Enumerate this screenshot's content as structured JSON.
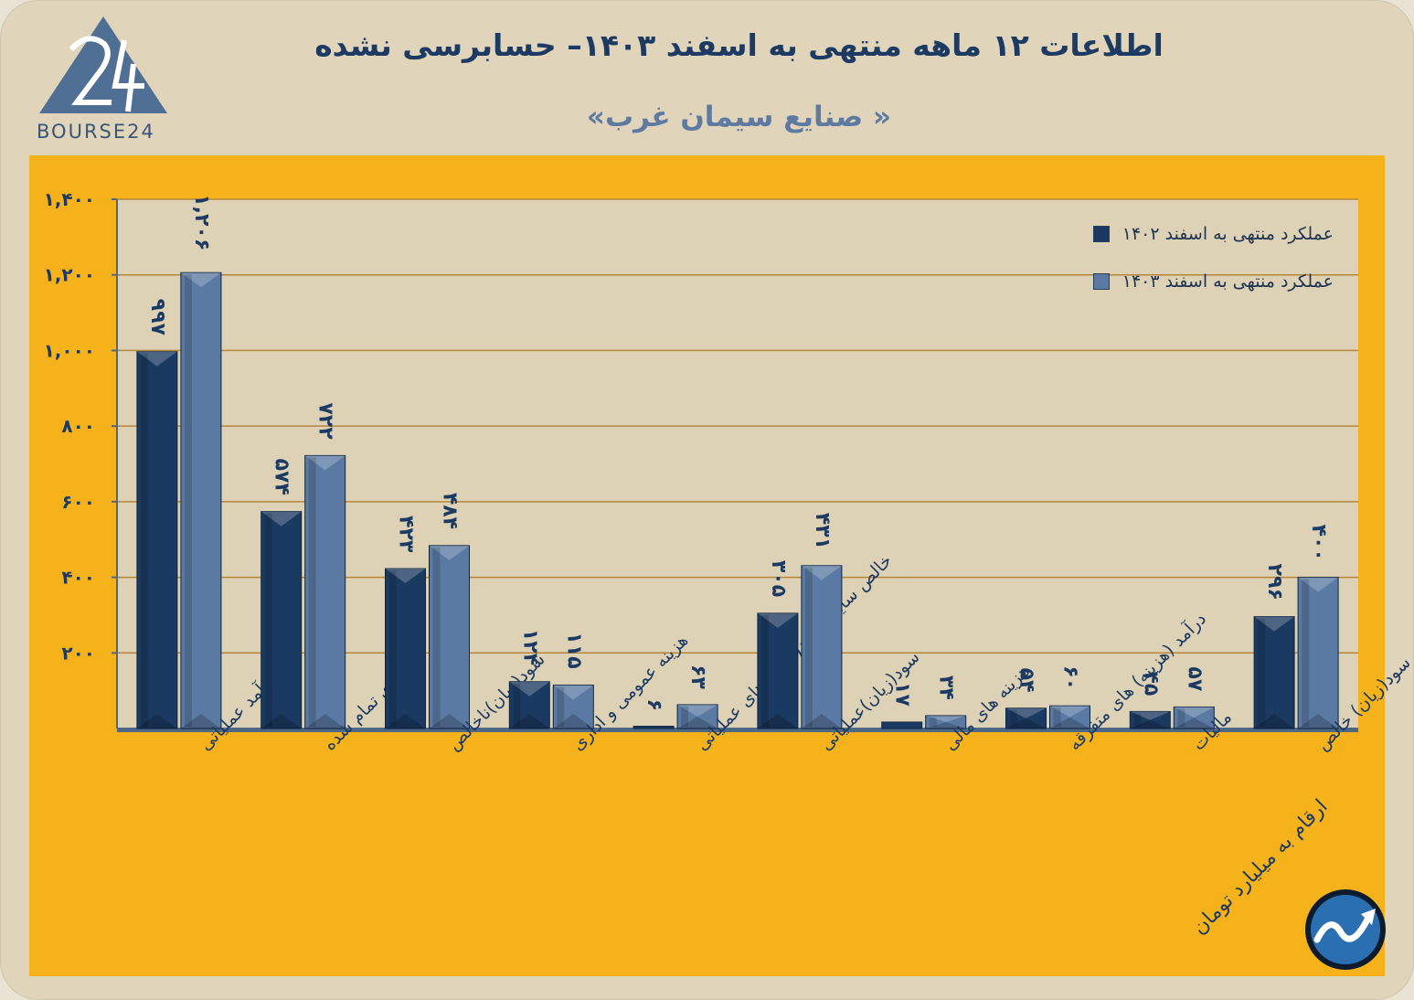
{
  "header": {
    "title": "اطلاعات ۱۲ ماهه منتهی به اسفند ۱۴۰۳– حسابرسی نشده",
    "subtitle": "« صنایع سیمان غرب»",
    "logo_text": "BOURSE24",
    "unit_note": "ارقام به میلیارد تومان"
  },
  "colors": {
    "background": "#e0d5ba",
    "panel": "#f6b21b",
    "series1": "#1b3a61",
    "series2": "#5a7aa3",
    "axis": "#4d6785",
    "grid": "#b5863a",
    "plot_bg": "#ddd2b6",
    "label": "#1d3b62"
  },
  "chart_data": {
    "type": "bar",
    "categories": [
      "درآمد عملیاتی",
      "بهای تمام شده",
      "سود(زیان)ناخالص",
      "هزینه عمومی و اداری",
      "خالص سایر درامد(هزینه)های عملیاتی",
      "سود(زیان)عملیاتی",
      "هزینه های مالی",
      "درآمد (هزینه) های متفرقه",
      "مالیات",
      "سود(زیان) خالص"
    ],
    "series": [
      {
        "name": "عملکرد منتهی به اسفند ۱۴۰۲",
        "values": [
          997,
          574,
          423,
          124,
          6,
          305,
          17,
          54,
          45,
          296
        ],
        "labels": [
          "۹۹۷",
          "۵۷۴",
          "۴۲۳",
          "۱۲۴",
          "۶",
          "۳۰۵",
          "۱۷",
          "۵۴",
          "۴۵",
          "۲۹۶"
        ]
      },
      {
        "name": "عملکرد منتهی به اسفند ۱۴۰۳",
        "values": [
          1206,
          722,
          484,
          115,
          63,
          431,
          34,
          60,
          57,
          400
        ],
        "labels": [
          "۱,۲۰۶",
          "۷۲۲",
          "۴۸۴",
          "۱۱۵",
          "۶۳",
          "۴۳۱",
          "۳۴",
          "۶۰",
          "۵۷",
          "۴۰۰"
        ]
      }
    ],
    "yticks": [
      200,
      400,
      600,
      800,
      1000,
      1200,
      1400
    ],
    "ytick_labels": [
      "۲۰۰",
      "۴۰۰",
      "۶۰۰",
      "۸۰۰",
      "۱,۰۰۰",
      "۱,۲۰۰",
      "۱,۴۰۰"
    ],
    "ylim": [
      0,
      1400
    ],
    "grid": true,
    "legend_position": "top-right"
  }
}
